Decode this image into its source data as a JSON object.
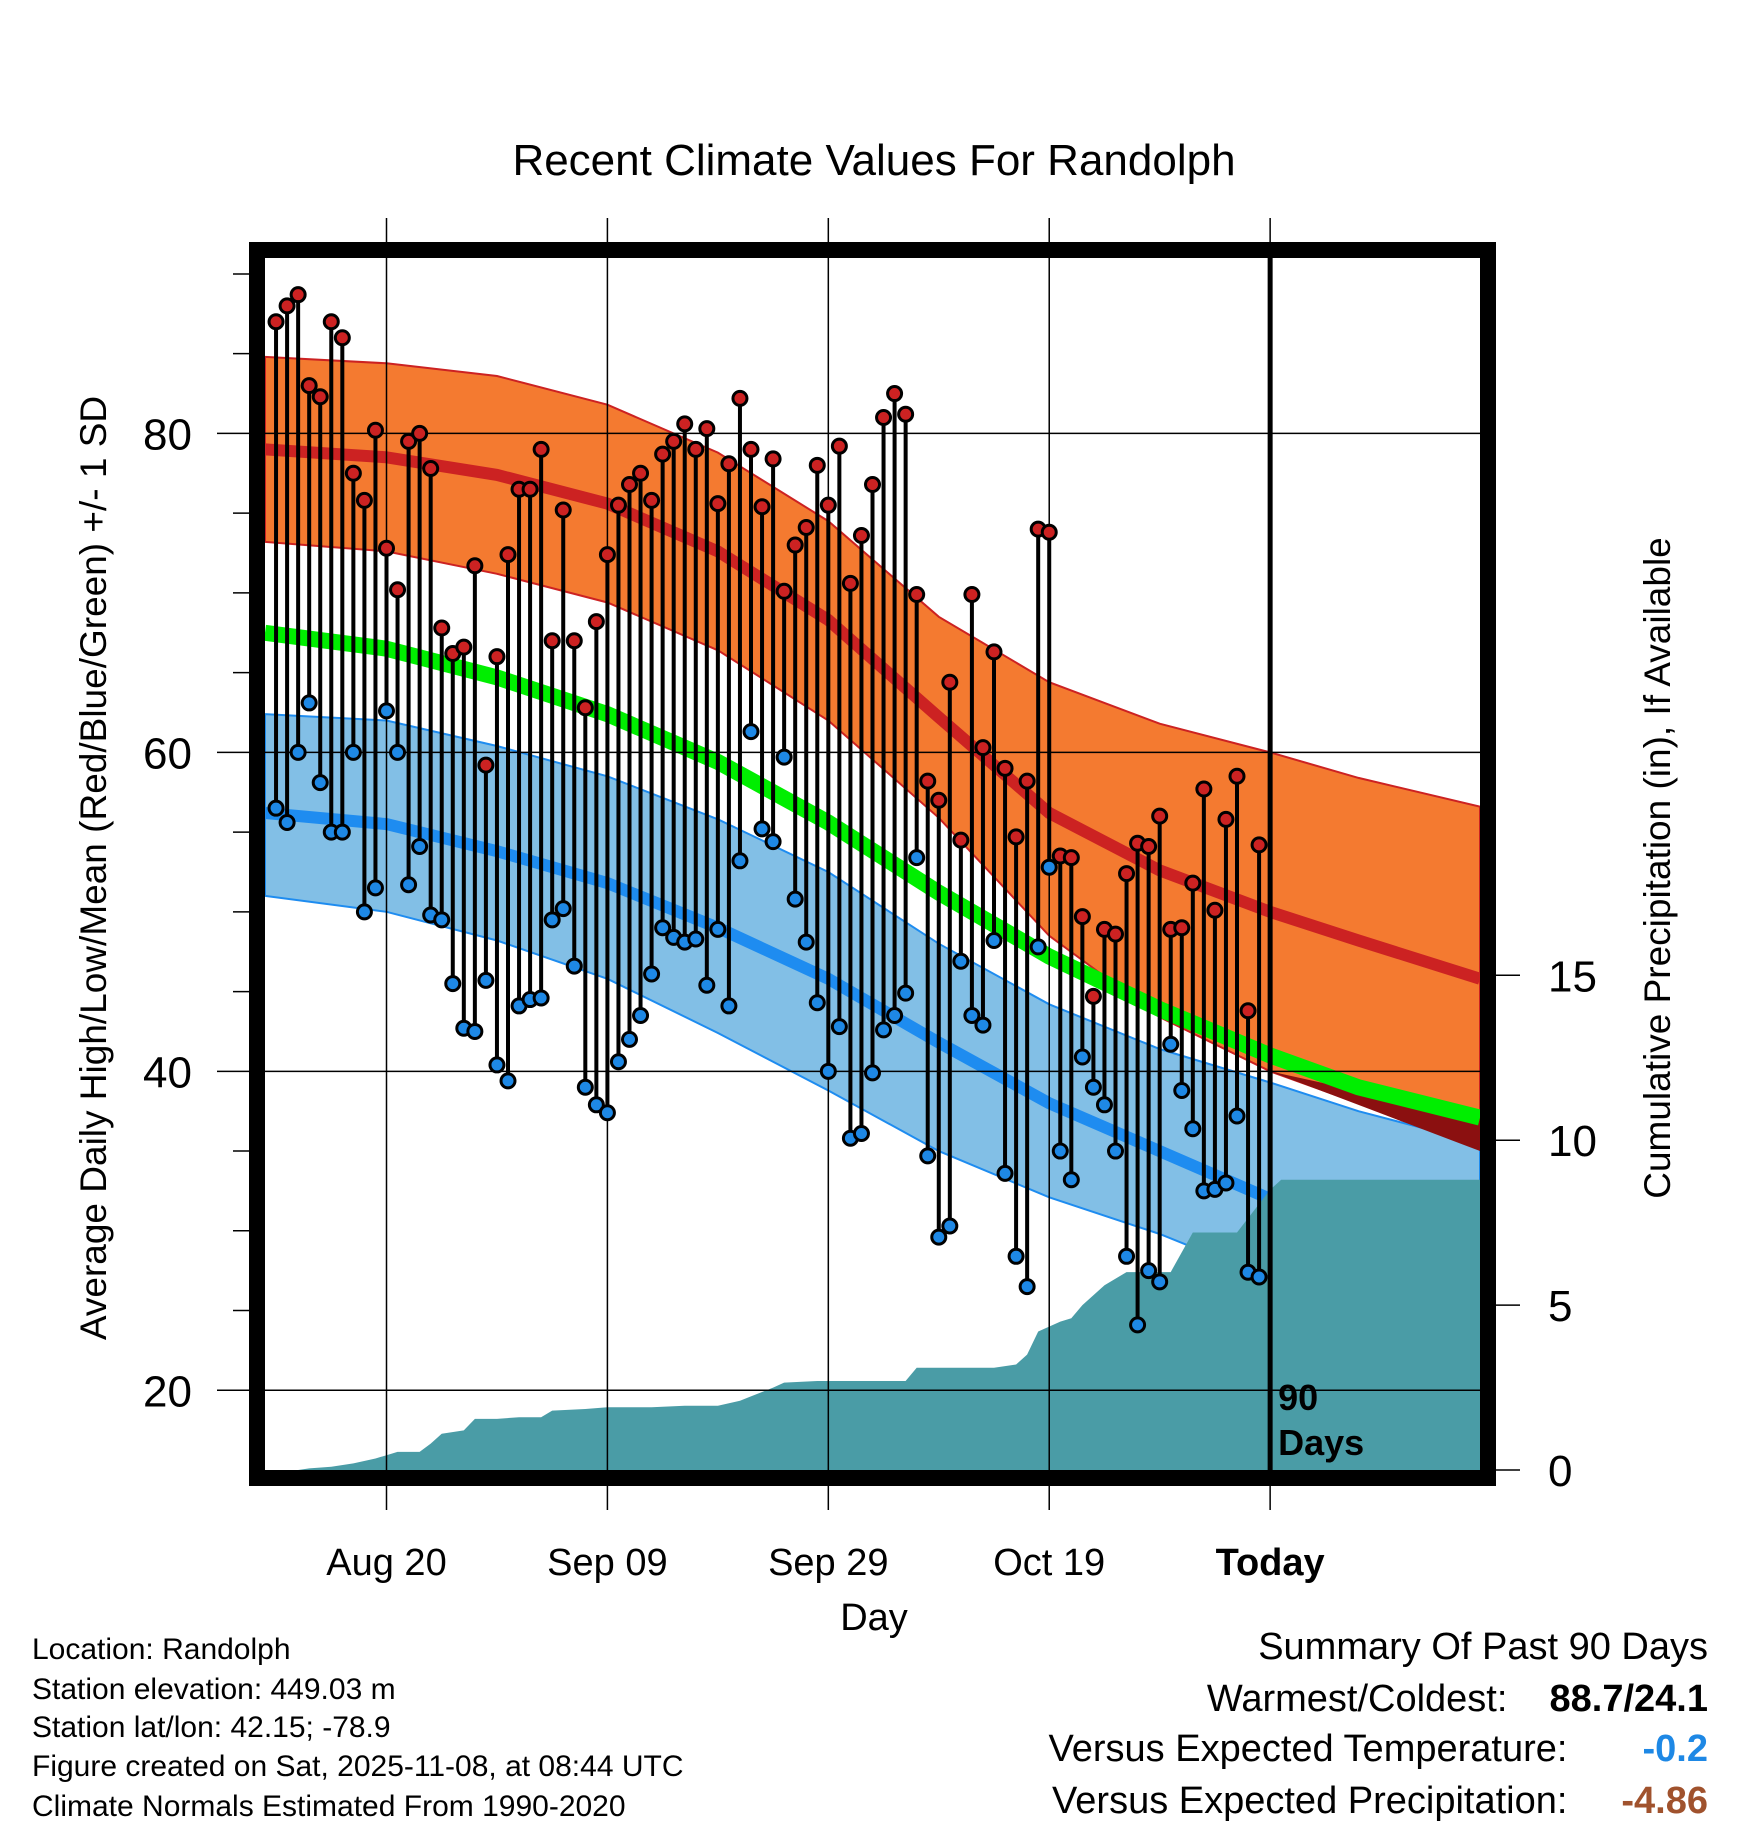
{
  "chart_data": {
    "type": "line",
    "title": "Recent Climate Values For Randolph",
    "xlabel": "Day",
    "ylabel": "Average Daily High/Low/Mean (Red/Blue/Green) +/- 1 SD",
    "y2label": "Cumulative Precipitation (in), If Available",
    "xlim": [
      -11,
      99
    ],
    "ylim": [
      15,
      91
    ],
    "y2lim": [
      0,
      36.75
    ],
    "xticks": [
      {
        "x": 0,
        "label": "Aug 20"
      },
      {
        "x": 20,
        "label": "Sep 09"
      },
      {
        "x": 40,
        "label": "Sep 29"
      },
      {
        "x": 60,
        "label": "Oct 19"
      },
      {
        "x": 80,
        "label": "Today"
      }
    ],
    "yticks": [
      20,
      40,
      60,
      80
    ],
    "y2ticks": [
      0,
      5,
      10,
      15
    ],
    "today_x": 80,
    "today_label_1": "90",
    "today_label_2": "Days",
    "normal_x": [
      -11,
      0,
      10,
      20,
      30,
      40,
      50,
      60,
      70,
      80,
      88,
      99
    ],
    "normal_high": [
      79.0,
      78.5,
      77.4,
      75.6,
      72.6,
      68.3,
      62.2,
      56.2,
      52.6,
      50.0,
      48.2,
      45.8
    ],
    "normal_high_upper": [
      84.8,
      84.4,
      83.6,
      81.8,
      78.8,
      74.5,
      68.5,
      64.4,
      61.8,
      60.0,
      58.4,
      56.6
    ],
    "normal_high_lower": [
      73.2,
      72.6,
      71.2,
      69.4,
      66.4,
      62.0,
      55.9,
      48.5,
      43.4,
      40.0,
      38.0,
      35.0
    ],
    "normal_mean": [
      67.5,
      66.5,
      64.7,
      62.4,
      59.4,
      55.6,
      51.2,
      47.2,
      43.9,
      41.0,
      39.0,
      37.1
    ],
    "normal_low": [
      56.2,
      55.5,
      53.8,
      51.8,
      49.0,
      45.8,
      41.8,
      38.0,
      35.0,
      32.0,
      30.5,
      28.7
    ],
    "normal_low_upper": [
      62.4,
      62.0,
      60.4,
      58.5,
      55.8,
      52.5,
      48.0,
      44.2,
      41.4,
      39.3,
      37.5,
      35.5
    ],
    "normal_low_lower": [
      51.0,
      50.0,
      48.2,
      45.8,
      42.4,
      38.8,
      35.0,
      32.1,
      29.8,
      27.0,
      24.5,
      22.0
    ],
    "daily_x_start": -10,
    "daily_high": [
      87.0,
      88.0,
      88.7,
      83.0,
      82.3,
      87.0,
      86.0,
      77.5,
      75.8,
      80.2,
      72.8,
      70.2,
      79.5,
      80.0,
      77.8,
      67.8,
      66.2,
      66.6,
      71.7,
      59.2,
      66.0,
      72.4,
      76.5,
      76.5,
      79.0,
      67.0,
      75.2,
      67.0,
      62.8,
      68.2,
      72.4,
      75.5,
      76.8,
      77.5,
      75.8,
      78.7,
      79.5,
      80.6,
      79.0,
      80.3,
      75.6,
      78.1,
      82.2,
      79.0,
      75.4,
      78.4,
      70.1,
      73.0,
      74.1,
      78.0,
      75.5,
      79.2,
      70.6,
      73.6,
      76.8,
      81.0,
      82.5,
      81.2,
      69.9,
      58.2,
      57.0,
      64.4,
      54.5,
      69.9,
      60.3,
      66.3,
      59.0,
      54.7,
      58.2,
      74.0,
      73.8,
      53.5,
      53.4,
      49.7,
      44.7,
      48.9,
      48.6,
      52.4,
      54.3,
      54.1,
      56.0,
      48.9,
      49.0,
      51.8,
      57.7,
      50.1,
      55.8,
      58.5,
      43.8,
      54.2
    ],
    "daily_low": [
      56.5,
      55.6,
      60.0,
      63.1,
      58.1,
      55.0,
      55.0,
      60.0,
      50.0,
      51.5,
      62.6,
      60.0,
      51.7,
      54.1,
      49.8,
      49.5,
      45.5,
      42.7,
      42.5,
      45.7,
      40.4,
      39.4,
      44.1,
      44.5,
      44.6,
      49.5,
      50.2,
      46.6,
      39.0,
      37.9,
      37.4,
      40.6,
      42.0,
      43.5,
      46.1,
      49.0,
      48.4,
      48.1,
      48.3,
      45.4,
      48.9,
      44.1,
      53.2,
      61.3,
      55.2,
      54.4,
      59.7,
      50.8,
      48.1,
      44.3,
      40.0,
      42.8,
      35.8,
      36.1,
      39.9,
      42.6,
      43.5,
      44.9,
      53.4,
      34.7,
      29.6,
      30.3,
      46.9,
      43.5,
      42.9,
      48.2,
      33.6,
      28.4,
      26.5,
      47.8,
      52.8,
      35.0,
      33.2,
      40.9,
      39.0,
      37.9,
      35.0,
      28.4,
      24.1,
      27.5,
      26.8,
      41.7,
      38.8,
      36.4,
      32.5,
      32.6,
      33.0,
      37.2,
      27.4,
      27.1
    ],
    "precip_x": [
      -11,
      -8,
      -7,
      -5,
      -3,
      -1,
      0,
      1,
      3,
      4,
      5,
      7,
      8,
      10,
      12,
      14,
      15,
      18,
      20,
      24,
      27,
      30,
      32,
      35,
      36,
      39,
      40,
      44,
      47,
      48,
      50,
      53,
      55,
      57,
      58,
      59,
      61,
      62,
      63,
      65,
      67,
      69,
      71,
      73,
      75,
      77,
      80,
      81,
      99
    ],
    "precip_y": [
      0.0,
      0.0,
      0.05,
      0.1,
      0.2,
      0.35,
      0.45,
      0.55,
      0.55,
      0.8,
      1.1,
      1.2,
      1.55,
      1.55,
      1.6,
      1.6,
      1.8,
      1.85,
      1.9,
      1.9,
      1.95,
      1.95,
      2.1,
      2.5,
      2.65,
      2.7,
      2.7,
      2.7,
      2.7,
      3.1,
      3.1,
      3.1,
      3.1,
      3.2,
      3.5,
      4.2,
      4.5,
      4.6,
      5.0,
      5.6,
      6.0,
      6.0,
      6.0,
      7.2,
      7.2,
      7.2,
      8.5,
      8.8,
      8.8
    ]
  },
  "info": {
    "location": "Location: Randolph",
    "elevation": "Station elevation: 449.03 m",
    "latlon": "Station lat/lon: 42.15; -78.9",
    "created": "Figure created on Sat, 2025-11-08, at 08:44 UTC",
    "normals": "Climate Normals Estimated From 1990-2020"
  },
  "summary": {
    "heading": "Summary Of Past 90 Days",
    "warm_cold_label": "Warmest/Coldest:",
    "warm_cold_value": "88.7/24.1",
    "temp_label": "Versus Expected Temperature:",
    "temp_value": "-0.2",
    "precip_label": "Versus Expected Precipitation:",
    "precip_value": "-4.86"
  },
  "colors": {
    "high_band": "#f47a30",
    "high_line": "#cc2222",
    "low_band": "#82bfe6",
    "low_line": "#1e8cf0",
    "mean_line": "#00ee00",
    "precip_fill": "#4a9ca6",
    "high_dot": "#cc2222",
    "low_dot": "#1e88e5",
    "dark_red": "#8b1010",
    "temp_value": "#1e88e5",
    "precip_value": "#a0522d"
  }
}
